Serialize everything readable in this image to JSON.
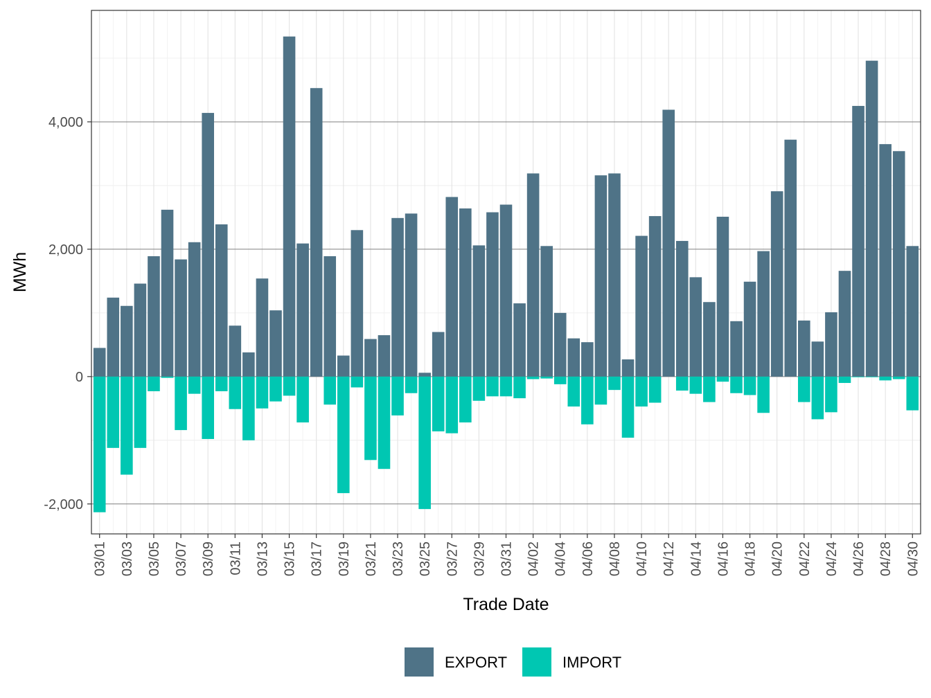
{
  "chart_data": {
    "type": "bar",
    "title": "",
    "xlabel": "Trade Date",
    "ylabel": "MWh",
    "ylim": [
      -2470,
      5750
    ],
    "yticks": [
      -2000,
      0,
      2000,
      4000
    ],
    "ytick_labels": [
      "-2,000",
      "0",
      "2,000",
      "4,000"
    ],
    "xtick_labels": [
      "03/01",
      "03/03",
      "03/05",
      "03/07",
      "03/09",
      "03/11",
      "03/13",
      "03/15",
      "03/17",
      "03/19",
      "03/21",
      "03/23",
      "03/25",
      "03/27",
      "03/29",
      "03/31",
      "04/02",
      "04/04",
      "04/06",
      "04/08",
      "04/10",
      "04/12",
      "04/14",
      "04/16",
      "04/18",
      "04/20",
      "04/22",
      "04/24",
      "04/26",
      "04/28",
      "04/30"
    ],
    "grid": true,
    "legend_position": "bottom",
    "categories": [
      "03/01",
      "03/02",
      "03/03",
      "03/04",
      "03/05",
      "03/06",
      "03/07",
      "03/08",
      "03/09",
      "03/10",
      "03/11",
      "03/12",
      "03/13",
      "03/14",
      "03/15",
      "03/16",
      "03/17",
      "03/18",
      "03/19",
      "03/20",
      "03/21",
      "03/22",
      "03/23",
      "03/24",
      "03/25",
      "03/26",
      "03/27",
      "03/28",
      "03/29",
      "03/30",
      "03/31",
      "04/01",
      "04/02",
      "04/03",
      "04/04",
      "04/05",
      "04/06",
      "04/07",
      "04/08",
      "04/09",
      "04/10",
      "04/11",
      "04/12",
      "04/13",
      "04/14",
      "04/15",
      "04/16",
      "04/17",
      "04/18",
      "04/19",
      "04/20",
      "04/21",
      "04/22",
      "04/23",
      "04/24",
      "04/25",
      "04/26",
      "04/27",
      "04/28",
      "04/29",
      "04/30"
    ],
    "series": [
      {
        "name": "EXPORT",
        "color": "#4f7387",
        "values": [
          450,
          1240,
          1110,
          1460,
          1890,
          2620,
          1840,
          2110,
          4140,
          2390,
          800,
          380,
          1540,
          1040,
          5340,
          2090,
          4530,
          1890,
          330,
          2300,
          590,
          650,
          2490,
          2560,
          60,
          700,
          2820,
          2640,
          2060,
          2580,
          2700,
          1150,
          3190,
          2050,
          1000,
          600,
          540,
          3160,
          3190,
          270,
          2210,
          2520,
          4190,
          2130,
          1560,
          1170,
          2510,
          870,
          1490,
          1970,
          2910,
          3720,
          880,
          550,
          1010,
          1660,
          4250,
          4960,
          3650,
          3540,
          2050
        ]
      },
      {
        "name": "IMPORT",
        "color": "#00c7b2",
        "values": [
          -2130,
          -1120,
          -1540,
          -1120,
          -230,
          -20,
          -840,
          -270,
          -980,
          -230,
          -510,
          -1000,
          -500,
          -390,
          -300,
          -720,
          0,
          -440,
          -1830,
          -170,
          -1310,
          -1450,
          -610,
          -260,
          -2080,
          -860,
          -890,
          -720,
          -380,
          -310,
          -310,
          -340,
          -40,
          -30,
          -120,
          -470,
          -750,
          -440,
          -210,
          -960,
          -470,
          -410,
          0,
          -220,
          -270,
          -400,
          -80,
          -260,
          -290,
          -570,
          0,
          0,
          -400,
          -670,
          -560,
          -100,
          -10,
          -10,
          -60,
          -40,
          -530
        ]
      }
    ]
  }
}
